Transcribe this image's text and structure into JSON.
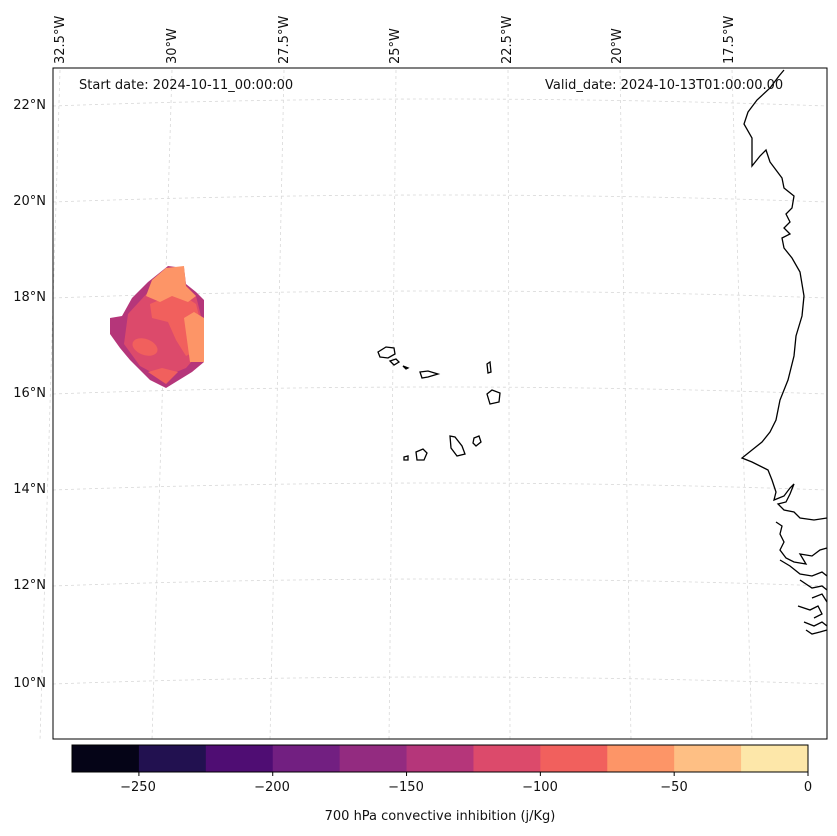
{
  "map": {
    "annotations": {
      "start_date": "Start date: 2024-10-11_00:00:00",
      "valid_date": "Valid_date: 2024-10-13T01:00:00.00"
    },
    "longitude_labels": [
      "32.5°W",
      "30°W",
      "27.5°W",
      "25°W",
      "22.5°W",
      "20°W",
      "17.5°W"
    ],
    "latitude_labels": [
      "22°N",
      "20°N",
      "18°N",
      "16°N",
      "14°N",
      "12°N",
      "10°N"
    ],
    "features": [
      "convective-inhibition-field",
      "cape-verde-islands",
      "west-africa-coastline"
    ]
  },
  "colorbar": {
    "label": "700 hPa convective inhibition (j/Kg)",
    "ticks": [
      "−250",
      "−200",
      "−150",
      "−100",
      "−50",
      "0"
    ],
    "range": [
      -275,
      0
    ],
    "colors": [
      "#050417",
      "#221150",
      "#4f0d73",
      "#721f81",
      "#932b80",
      "#b5367a",
      "#dc4a6b",
      "#f1605d",
      "#fd9567",
      "#febf84",
      "#fde7a9"
    ]
  }
}
